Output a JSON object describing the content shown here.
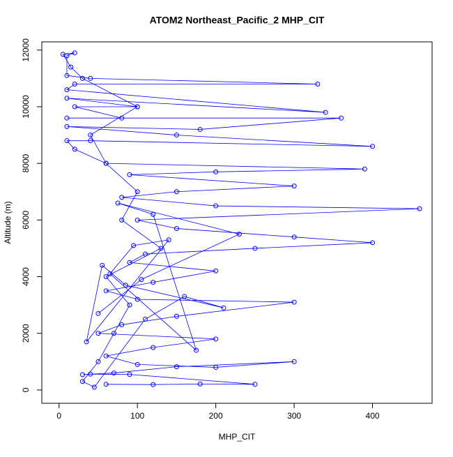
{
  "chart_data": {
    "type": "scatter",
    "lines": true,
    "title": "ATOM2 Northeast_Pacific_2 MHP_CIT",
    "x_label": "MHP_CIT",
    "y_label": "Altitude (m)",
    "color": "#0000ff",
    "xlim": [
      -22,
      476
    ],
    "ylim": [
      -470,
      12290
    ],
    "xticks": [
      0,
      100,
      200,
      300,
      400
    ],
    "yticks": [
      0,
      2000,
      4000,
      6000,
      8000,
      10000,
      12000
    ],
    "x": [
      60,
      120,
      180,
      250,
      90,
      40,
      30,
      70,
      150,
      300,
      200,
      100,
      60,
      120,
      200,
      50,
      80,
      150,
      300,
      100,
      60,
      120,
      200,
      90,
      110,
      250,
      400,
      300,
      150,
      100,
      460,
      200,
      80,
      150,
      300,
      90,
      200,
      390,
      60,
      20,
      10,
      40,
      400,
      150,
      10,
      180,
      360,
      10,
      80,
      20,
      100,
      10,
      340,
      10,
      20,
      330,
      40,
      10,
      10,
      20,
      5,
      15,
      30,
      100,
      40,
      60,
      100,
      80,
      130,
      60,
      90,
      70,
      50,
      30,
      45,
      110,
      160,
      210,
      85,
      55,
      35,
      140,
      95,
      65,
      175,
      120,
      75,
      230,
      105,
      50
    ],
    "values": [
      200,
      190,
      210,
      200,
      550,
      560,
      540,
      600,
      820,
      1000,
      800,
      900,
      1200,
      1500,
      1800,
      2000,
      2300,
      2600,
      3100,
      3200,
      3500,
      3800,
      4200,
      4500,
      4800,
      5000,
      5200,
      5400,
      5700,
      6000,
      6400,
      6500,
      6800,
      7000,
      7200,
      7600,
      7700,
      7800,
      8000,
      8500,
      8800,
      8800,
      8600,
      9000,
      9300,
      9200,
      9600,
      9600,
      9600,
      10000,
      10000,
      10300,
      9800,
      10600,
      10800,
      10800,
      11000,
      11100,
      11800,
      11900,
      11850,
      11400,
      11000,
      10000,
      9000,
      8000,
      7000,
      6000,
      5000,
      4000,
      3000,
      2000,
      1000,
      300,
      100,
      2500,
      3300,
      2900,
      3700,
      4400,
      1700,
      5300,
      5100,
      4100,
      1400,
      6200,
      6600,
      5500,
      3900,
      2700
    ]
  }
}
